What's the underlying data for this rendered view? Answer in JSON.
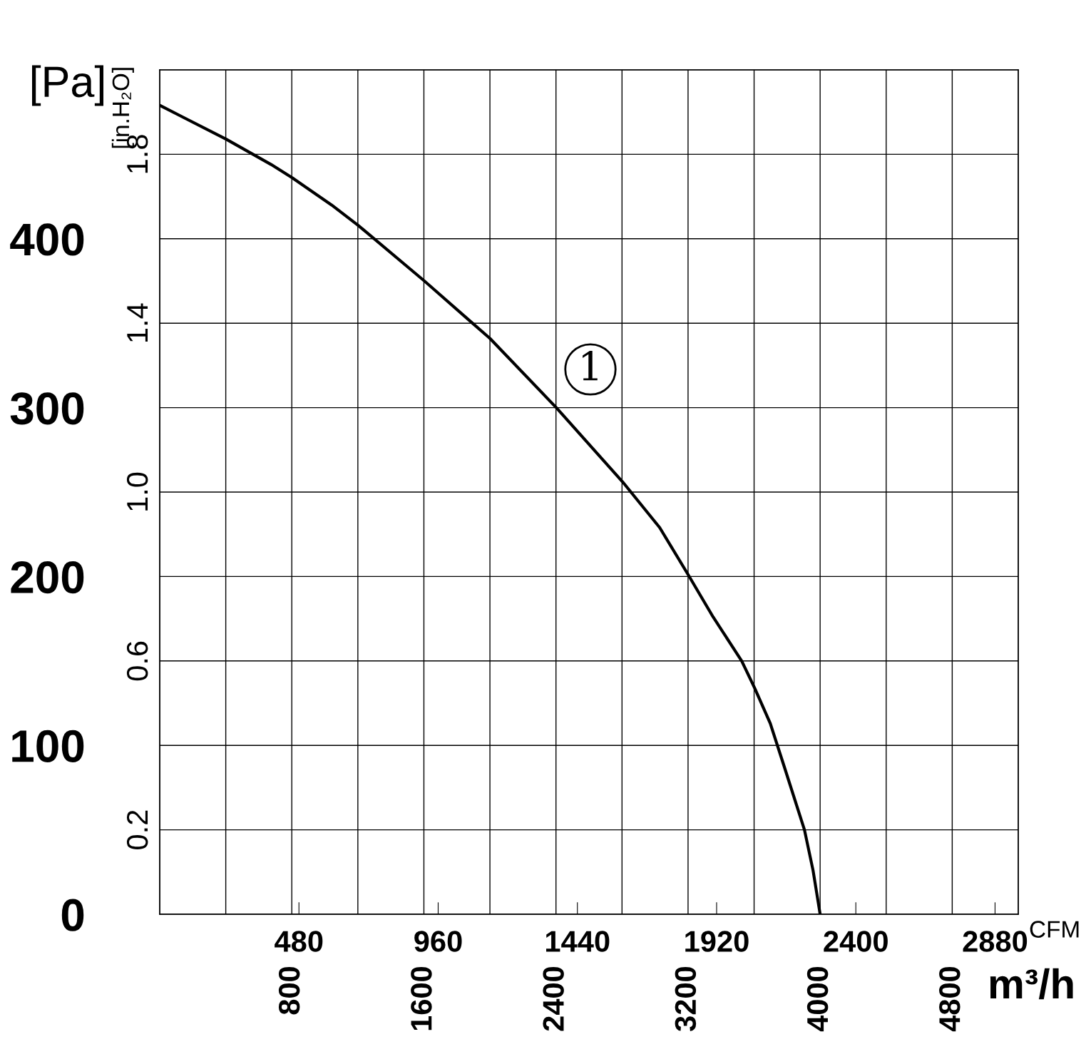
{
  "chart_data": {
    "type": "line",
    "xlabel": "m³/h",
    "x2label": "CFM",
    "ylabel": "[Pa]",
    "y2label": "[in.H₂O]",
    "x": [
      0,
      402,
      674,
      804,
      1041,
      1201,
      1603,
      1883,
      2000,
      2402,
      2804,
      3028,
      3201,
      3352,
      3525,
      3603,
      3698,
      3784,
      3905,
      3957,
      4000
    ],
    "series": [
      {
        "color": "#000000",
        "values": [
          479,
          459,
          444,
          436,
          420,
          408,
          375,
          351,
          341,
          300,
          256,
          229,
          201,
          176,
          150,
          134,
          113,
          87,
          50,
          26,
          0
        ]
      }
    ],
    "xlim": [
      0,
      5200
    ],
    "xticks": [
      {
        "value": 400,
        "label": null
      },
      800,
      {
        "value": 1200,
        "label": null
      },
      1600,
      {
        "value": 2000,
        "label": null
      },
      2400,
      {
        "value": 2800,
        "label": null
      },
      3200,
      {
        "value": 3600,
        "label": null
      },
      4000,
      {
        "value": 4400,
        "label": null
      },
      4800
    ],
    "x2lim": [
      0,
      2960
    ],
    "x2ticks": [
      480,
      960,
      1440,
      1920,
      2400,
      2880
    ],
    "ylim": [
      0,
      500
    ],
    "yticks": [
      0,
      {
        "value": 50,
        "label": null
      },
      100,
      {
        "value": 150,
        "label": null
      },
      200,
      {
        "value": 250,
        "label": null
      },
      300,
      {
        "value": 350,
        "label": null
      },
      400,
      {
        "value": 450,
        "label": null
      }
    ],
    "y2lim": [
      0,
      2.0
    ],
    "y2ticks": [
      0.2,
      0.6,
      {
        "value": 1.0,
        "label": "1.0"
      },
      1.4,
      1.8
    ],
    "grid": true,
    "marker": "none",
    "line_style": "solid",
    "legend": false,
    "annotations": [
      "1"
    ]
  }
}
